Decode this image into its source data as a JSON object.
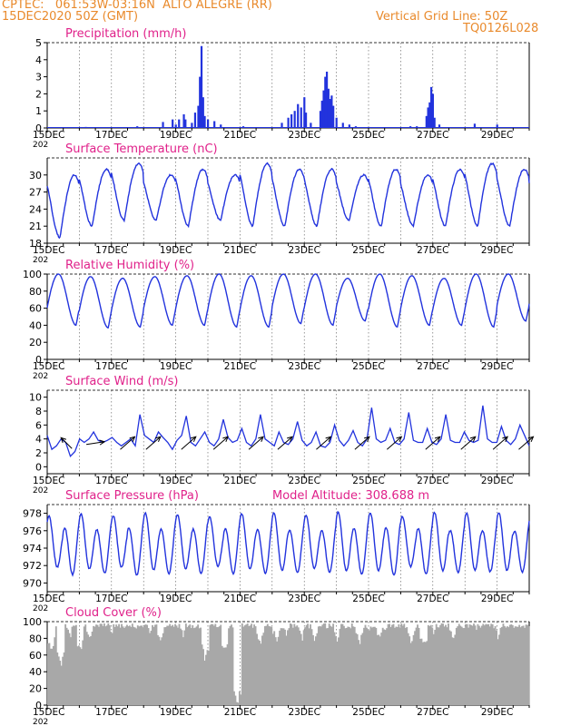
{
  "header": {
    "line1": "CPTEC:   061:53W-03:16N  ALTO ALEGRE (RR)",
    "line2": "15DEC2020 50Z (GMT)",
    "right1": "Vertical Grid Line: 50Z",
    "right2": "TQ0126L028"
  },
  "colors": {
    "header": "#e98a2c",
    "title": "#e0218a",
    "series": "#2233dd",
    "cloud": "#a8a8a8"
  },
  "x_ticks": [
    "15DEC",
    "17DEC",
    "19DEC",
    "21DEC",
    "23DEC",
    "25DEC",
    "27DEC",
    "29DEC"
  ],
  "x_tick_days": [
    0,
    2,
    4,
    6,
    8,
    10,
    12,
    14
  ],
  "x_sub": "202",
  "chart_data": [
    {
      "type": "bar",
      "title": "Precipitation (mm/h)",
      "ylim": [
        0,
        5
      ],
      "yticks": [
        0,
        1,
        2,
        3,
        4,
        5
      ],
      "x_days": [
        0,
        15
      ],
      "events": [
        {
          "day": 0.5,
          "value": 0.05
        },
        {
          "day": 1.2,
          "value": 0.06
        },
        {
          "day": 2.8,
          "value": 0.1
        },
        {
          "day": 3.6,
          "value": 0.35
        },
        {
          "day": 3.9,
          "value": 0.5
        },
        {
          "day": 4.0,
          "value": 0.2
        },
        {
          "day": 4.1,
          "value": 0.5
        },
        {
          "day": 4.25,
          "value": 0.8
        },
        {
          "day": 4.3,
          "value": 0.5
        },
        {
          "day": 4.5,
          "value": 0.3
        },
        {
          "day": 4.6,
          "value": 0.9
        },
        {
          "day": 4.7,
          "value": 1.3
        },
        {
          "day": 4.75,
          "value": 3.0
        },
        {
          "day": 4.8,
          "value": 4.8
        },
        {
          "day": 4.85,
          "value": 1.8
        },
        {
          "day": 4.9,
          "value": 0.7
        },
        {
          "day": 5.0,
          "value": 0.5
        },
        {
          "day": 5.2,
          "value": 0.4
        },
        {
          "day": 5.4,
          "value": 0.2
        },
        {
          "day": 6.1,
          "value": 0.1
        },
        {
          "day": 7.3,
          "value": 0.3
        },
        {
          "day": 7.5,
          "value": 0.6
        },
        {
          "day": 7.6,
          "value": 0.8
        },
        {
          "day": 7.7,
          "value": 1.0
        },
        {
          "day": 7.8,
          "value": 1.4
        },
        {
          "day": 7.9,
          "value": 1.2
        },
        {
          "day": 8.0,
          "value": 1.8
        },
        {
          "day": 8.05,
          "value": 0.9
        },
        {
          "day": 8.2,
          "value": 0.3
        },
        {
          "day": 8.5,
          "value": 1.0
        },
        {
          "day": 8.55,
          "value": 1.6
        },
        {
          "day": 8.6,
          "value": 2.2
        },
        {
          "day": 8.65,
          "value": 3.0
        },
        {
          "day": 8.7,
          "value": 3.3
        },
        {
          "day": 8.75,
          "value": 2.3
        },
        {
          "day": 8.8,
          "value": 1.7
        },
        {
          "day": 8.85,
          "value": 1.9
        },
        {
          "day": 8.9,
          "value": 1.3
        },
        {
          "day": 9.0,
          "value": 0.6
        },
        {
          "day": 9.2,
          "value": 0.3
        },
        {
          "day": 9.4,
          "value": 0.2
        },
        {
          "day": 9.6,
          "value": 0.1
        },
        {
          "day": 11.3,
          "value": 0.1
        },
        {
          "day": 11.5,
          "value": 0.1
        },
        {
          "day": 11.8,
          "value": 0.7
        },
        {
          "day": 11.85,
          "value": 1.2
        },
        {
          "day": 11.9,
          "value": 1.5
        },
        {
          "day": 11.95,
          "value": 2.4
        },
        {
          "day": 12.0,
          "value": 2.0
        },
        {
          "day": 12.05,
          "value": 0.6
        },
        {
          "day": 12.2,
          "value": 0.2
        },
        {
          "day": 13.3,
          "value": 0.25
        },
        {
          "day": 14.0,
          "value": 0.2
        },
        {
          "day": 14.2,
          "value": 0.05
        }
      ]
    },
    {
      "type": "line",
      "title": "Surface Temperature (nC)",
      "ylim": [
        18,
        33
      ],
      "yticks": [
        18,
        21,
        24,
        27,
        30
      ],
      "diurnal": {
        "min_phase_day": 0.4,
        "series": [
          {
            "day": 0,
            "max": 30,
            "min": 19
          },
          {
            "day": 1,
            "max": 31,
            "min": 21
          },
          {
            "day": 2,
            "max": 32,
            "min": 22
          },
          {
            "day": 3,
            "max": 30,
            "min": 22
          },
          {
            "day": 4,
            "max": 31,
            "min": 21
          },
          {
            "day": 5,
            "max": 30,
            "min": 22
          },
          {
            "day": 6,
            "max": 32,
            "min": 21
          },
          {
            "day": 7,
            "max": 31,
            "min": 21
          },
          {
            "day": 8,
            "max": 31,
            "min": 21
          },
          {
            "day": 9,
            "max": 30,
            "min": 22
          },
          {
            "day": 10,
            "max": 31,
            "min": 21
          },
          {
            "day": 11,
            "max": 30,
            "min": 21
          },
          {
            "day": 12,
            "max": 31,
            "min": 21
          },
          {
            "day": 13,
            "max": 32,
            "min": 21
          },
          {
            "day": 14,
            "max": 31,
            "min": 21
          },
          {
            "day": 15,
            "max": 30,
            "min": 22
          }
        ]
      }
    },
    {
      "type": "line",
      "title": "Relative Humidity (%)",
      "ylim": [
        0,
        100
      ],
      "yticks": [
        0,
        20,
        40,
        60,
        80,
        100
      ],
      "diurnal": {
        "min_phase_day": 0.9,
        "series": [
          {
            "day": 0,
            "max": 100,
            "min": 40
          },
          {
            "day": 1,
            "max": 97,
            "min": 37
          },
          {
            "day": 2,
            "max": 95,
            "min": 38
          },
          {
            "day": 3,
            "max": 97,
            "min": 40
          },
          {
            "day": 4,
            "max": 98,
            "min": 40
          },
          {
            "day": 5,
            "max": 100,
            "min": 38
          },
          {
            "day": 6,
            "max": 98,
            "min": 38
          },
          {
            "day": 7,
            "max": 100,
            "min": 42
          },
          {
            "day": 8,
            "max": 100,
            "min": 40
          },
          {
            "day": 9,
            "max": 95,
            "min": 45
          },
          {
            "day": 10,
            "max": 100,
            "min": 38
          },
          {
            "day": 11,
            "max": 98,
            "min": 40
          },
          {
            "day": 12,
            "max": 95,
            "min": 40
          },
          {
            "day": 13,
            "max": 100,
            "min": 38
          },
          {
            "day": 14,
            "max": 100,
            "min": 45
          },
          {
            "day": 15,
            "max": 95,
            "min": 50
          }
        ]
      }
    },
    {
      "type": "line",
      "title": "Surface Wind (m/s)",
      "ylim": [
        -1,
        11
      ],
      "yticks": [
        0,
        2,
        4,
        6,
        8,
        10
      ],
      "speed": [
        4.5,
        2.5,
        3,
        4,
        3.5,
        1.5,
        2.2,
        4,
        3.5,
        4,
        5,
        3.8,
        3.5,
        3.8,
        4.2,
        3.5,
        3,
        3.5,
        4,
        3,
        7.5,
        4.5,
        4,
        3.5,
        5,
        4.2,
        3.5,
        2.5,
        3.8,
        4.5,
        7.3,
        3.5,
        3,
        4,
        5,
        3.5,
        3,
        4,
        6.8,
        4.2,
        3.5,
        3.8,
        5.5,
        3.5,
        3,
        4,
        7.5,
        4,
        3.5,
        3,
        5,
        3.5,
        3.2,
        4,
        6.5,
        3.8,
        3,
        3.5,
        5,
        3,
        2.8,
        3.5,
        6,
        3.8,
        3,
        3.8,
        5.2,
        3.5,
        3,
        4,
        8.5,
        4,
        3.5,
        3.8,
        5.5,
        3.5,
        3.2,
        4,
        7.8,
        3.8,
        3.5,
        3.5,
        5.5,
        3.5,
        3.2,
        4,
        7.5,
        3.8,
        3.5,
        3.5,
        5,
        3.8,
        3.5,
        3.8,
        8.8,
        4,
        3.5,
        3.5,
        5.8,
        3.8,
        3.2,
        4,
        6,
        4.5,
        3
      ],
      "arrows": [
        {
          "day": 0.6,
          "dir": "nw"
        },
        {
          "day": 1.5,
          "dir": "e"
        },
        {
          "day": 2.5,
          "dir": "ne"
        },
        {
          "day": 3.3,
          "dir": "ne"
        },
        {
          "day": 4.4,
          "dir": "ne"
        },
        {
          "day": 5.4,
          "dir": "ne"
        },
        {
          "day": 6.5,
          "dir": "ne"
        },
        {
          "day": 7.4,
          "dir": "ne"
        },
        {
          "day": 8.6,
          "dir": "ne"
        },
        {
          "day": 9.8,
          "dir": "ne"
        },
        {
          "day": 10.8,
          "dir": "ne"
        },
        {
          "day": 12.0,
          "dir": "ne"
        },
        {
          "day": 13.1,
          "dir": "ne"
        },
        {
          "day": 14.1,
          "dir": "ne"
        },
        {
          "day": 14.9,
          "dir": "ne"
        }
      ]
    },
    {
      "type": "line",
      "title": "Surface Pressure (hPa)",
      "subtitle": "Model Altitude: 308.688  m",
      "ylim": [
        969,
        979
      ],
      "yticks": [
        970,
        972,
        974,
        976,
        978
      ],
      "semidiurnal": {
        "amp": 2.8,
        "base": 974.2
      }
    },
    {
      "type": "area",
      "title": "Cloud Cover (%)",
      "ylim": [
        0,
        100
      ],
      "yticks": [
        0,
        20,
        40,
        60,
        80,
        100
      ],
      "typical": 95,
      "dips": [
        {
          "day": 0.1,
          "value": 60
        },
        {
          "day": 0.4,
          "value": 45
        },
        {
          "day": 0.7,
          "value": 78
        },
        {
          "day": 1.0,
          "value": 60
        },
        {
          "day": 1.3,
          "value": 75
        },
        {
          "day": 1.7,
          "value": 88
        },
        {
          "day": 2.0,
          "value": 82
        },
        {
          "day": 2.4,
          "value": 86
        },
        {
          "day": 2.8,
          "value": 85
        },
        {
          "day": 3.2,
          "value": 80
        },
        {
          "day": 3.5,
          "value": 70
        },
        {
          "day": 4.2,
          "value": 80
        },
        {
          "day": 4.9,
          "value": 50
        },
        {
          "day": 5.5,
          "value": 60
        },
        {
          "day": 5.9,
          "value": 0
        },
        {
          "day": 6.6,
          "value": 70
        },
        {
          "day": 7.1,
          "value": 72
        },
        {
          "day": 7.4,
          "value": 78
        },
        {
          "day": 7.9,
          "value": 75
        },
        {
          "day": 8.3,
          "value": 72
        },
        {
          "day": 9.0,
          "value": 72
        },
        {
          "day": 9.7,
          "value": 70
        },
        {
          "day": 10.0,
          "value": 80
        },
        {
          "day": 10.3,
          "value": 76
        },
        {
          "day": 10.5,
          "value": 85
        },
        {
          "day": 11.3,
          "value": 72
        },
        {
          "day": 11.7,
          "value": 65
        },
        {
          "day": 12.0,
          "value": 82
        },
        {
          "day": 12.6,
          "value": 72
        },
        {
          "day": 13.3,
          "value": 85
        },
        {
          "day": 14.0,
          "value": 78
        }
      ]
    }
  ]
}
